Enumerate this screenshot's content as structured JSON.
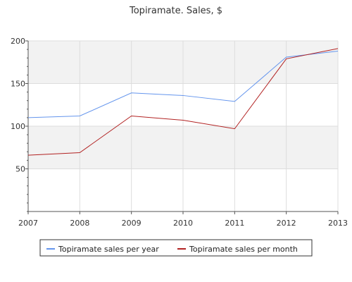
{
  "chart_data": {
    "type": "line",
    "title": "Topiramate. Sales, $",
    "xlabel": "",
    "ylabel": "",
    "x": [
      "2007",
      "2008",
      "2009",
      "2010",
      "2011",
      "2012",
      "2013"
    ],
    "ylim": [
      0,
      200
    ],
    "yticks": [
      50,
      100,
      150,
      200
    ],
    "grid": true,
    "legend_position": "bottom",
    "series": [
      {
        "name": "Topiramate sales per year",
        "color": "#6495ed",
        "values": [
          110,
          112,
          139,
          136,
          129,
          181,
          188
        ]
      },
      {
        "name": "Topiramate sales per month",
        "color": "#b22222",
        "values": [
          66,
          69,
          112,
          107,
          97,
          179,
          191
        ]
      }
    ]
  }
}
